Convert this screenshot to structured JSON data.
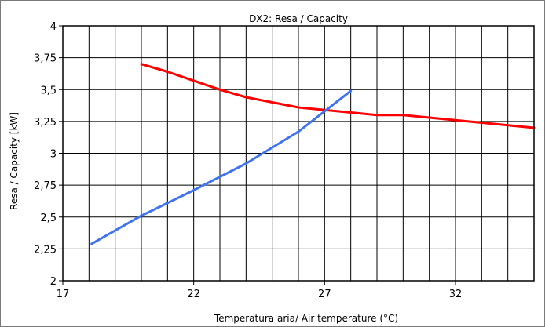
{
  "chart_data": {
    "type": "line",
    "title": "DX2: Resa / Capacity",
    "xlabel": "Temperatura aria/ Air temperature (°C)",
    "ylabel": "Resa / Capacity [kW]",
    "xlim": [
      17,
      35
    ],
    "ylim": [
      2,
      4
    ],
    "grid": true,
    "x_ticks": [
      17,
      22,
      27,
      32
    ],
    "x_tick_labels": [
      "17",
      "22",
      "27",
      "32"
    ],
    "y_ticks": [
      2,
      2.25,
      2.5,
      2.75,
      3,
      3.25,
      3.5,
      3.75,
      4
    ],
    "y_tick_labels": [
      "2",
      "2,25",
      "2,5",
      "2,75",
      "3",
      "3,25",
      "3,5",
      "3,75",
      "4"
    ],
    "series": [
      {
        "color": "#ff0000",
        "points": [
          [
            20,
            3.7
          ],
          [
            21,
            3.64
          ],
          [
            22,
            3.57
          ],
          [
            23,
            3.5
          ],
          [
            24,
            3.44
          ],
          [
            25,
            3.4
          ],
          [
            26,
            3.36
          ],
          [
            27,
            3.34
          ],
          [
            28,
            3.32
          ],
          [
            29,
            3.3
          ],
          [
            30,
            3.3
          ],
          [
            31,
            3.28
          ],
          [
            32,
            3.26
          ],
          [
            33,
            3.24
          ],
          [
            34,
            3.22
          ],
          [
            35,
            3.2
          ]
        ]
      },
      {
        "color": "#4073f0",
        "points": [
          [
            18.1,
            2.29
          ],
          [
            20,
            2.51
          ],
          [
            22,
            2.71
          ],
          [
            24,
            2.92
          ],
          [
            26,
            3.17
          ],
          [
            28,
            3.49
          ]
        ]
      }
    ]
  }
}
